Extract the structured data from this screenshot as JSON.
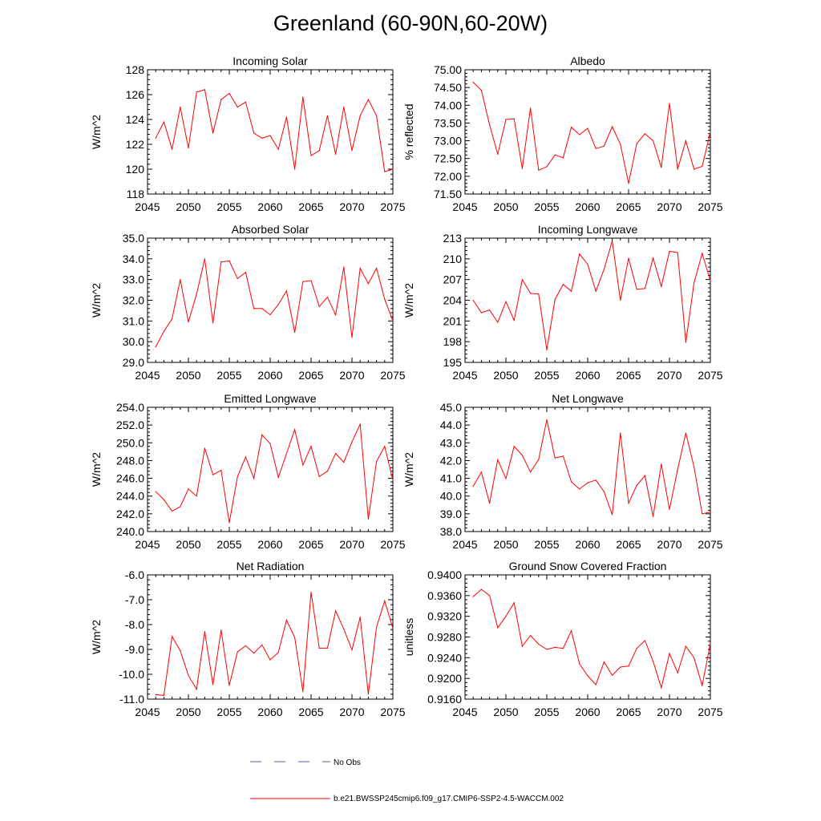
{
  "title": "Greenland (60-90N,60-20W)",
  "line_color": "#ff0000",
  "legend": {
    "obs_label": "No Obs",
    "obs_color": "#5060b0",
    "model_label": "b.e21.BWSSP245cmip6.f09_g17.CMIP6-SSP2-4.5-WACCM.002",
    "model_color": "#ff0000"
  },
  "chart_data": [
    {
      "type": "line",
      "title": "Incoming Solar",
      "ylabel": "W/m^2",
      "xlim": [
        2045,
        2075
      ],
      "ylim": [
        118,
        128
      ],
      "x_ticks": [
        2045,
        2050,
        2055,
        2060,
        2065,
        2070,
        2075
      ],
      "y_ticks": [
        "118",
        "120",
        "122",
        "124",
        "126",
        "128"
      ],
      "x": [
        2046,
        2047,
        2048,
        2049,
        2050,
        2051,
        2052,
        2053,
        2054,
        2055,
        2056,
        2057,
        2058,
        2059,
        2060,
        2061,
        2062,
        2063,
        2064,
        2065,
        2066,
        2067,
        2068,
        2069,
        2070,
        2071,
        2072,
        2073,
        2074,
        2075
      ],
      "values": [
        122.5,
        123.8,
        121.6,
        125.0,
        121.7,
        126.2,
        126.4,
        122.9,
        125.6,
        126.1,
        125.0,
        125.4,
        122.9,
        122.5,
        122.7,
        121.6,
        124.2,
        120.0,
        125.8,
        121.1,
        121.5,
        124.3,
        121.2,
        125.0,
        121.5,
        124.3,
        125.6,
        124.3,
        119.8,
        120.0
      ]
    },
    {
      "type": "line",
      "title": "Albedo",
      "ylabel": "% reflected",
      "xlim": [
        2045,
        2075
      ],
      "ylim": [
        71.5,
        75.0
      ],
      "x_ticks": [
        2045,
        2050,
        2055,
        2060,
        2065,
        2070,
        2075
      ],
      "y_ticks": [
        "71.50",
        "72.00",
        "72.50",
        "73.00",
        "73.50",
        "74.00",
        "74.50",
        "75.00"
      ],
      "x": [
        2046,
        2047,
        2048,
        2049,
        2050,
        2051,
        2052,
        2053,
        2054,
        2055,
        2056,
        2057,
        2058,
        2059,
        2060,
        2061,
        2062,
        2063,
        2064,
        2065,
        2066,
        2067,
        2068,
        2069,
        2070,
        2071,
        2072,
        2073,
        2074,
        2075
      ],
      "values": [
        74.65,
        74.42,
        73.45,
        72.62,
        73.6,
        73.62,
        72.22,
        73.92,
        72.17,
        72.27,
        72.6,
        72.52,
        73.38,
        73.17,
        73.35,
        72.78,
        72.85,
        73.4,
        72.9,
        71.8,
        72.92,
        73.2,
        73.0,
        72.25,
        74.05,
        72.2,
        73.0,
        72.2,
        72.28,
        73.25
      ]
    },
    {
      "type": "line",
      "title": "Absorbed Solar",
      "ylabel": "W/m^2",
      "xlim": [
        2045,
        2075
      ],
      "ylim": [
        29.0,
        35.0
      ],
      "x_ticks": [
        2045,
        2050,
        2055,
        2060,
        2065,
        2070,
        2075
      ],
      "y_ticks": [
        "29.0",
        "30.0",
        "31.0",
        "32.0",
        "33.0",
        "34.0",
        "35.0"
      ],
      "x": [
        2046,
        2047,
        2048,
        2049,
        2050,
        2051,
        2052,
        2053,
        2054,
        2055,
        2056,
        2057,
        2058,
        2059,
        2060,
        2061,
        2062,
        2063,
        2064,
        2065,
        2066,
        2067,
        2068,
        2069,
        2070,
        2071,
        2072,
        2073,
        2074,
        2075
      ],
      "values": [
        29.75,
        30.5,
        31.1,
        33.0,
        30.95,
        32.3,
        34.0,
        30.9,
        33.85,
        33.9,
        33.05,
        33.35,
        31.6,
        31.6,
        31.3,
        31.8,
        32.45,
        30.45,
        32.9,
        32.95,
        31.7,
        32.15,
        31.3,
        33.6,
        30.2,
        33.55,
        32.8,
        33.55,
        32.05,
        31.0
      ]
    },
    {
      "type": "line",
      "title": "Incoming Longwave",
      "ylabel": "W/m^2",
      "xlim": [
        2045,
        2075
      ],
      "ylim": [
        195,
        213
      ],
      "x_ticks": [
        2045,
        2050,
        2055,
        2060,
        2065,
        2070,
        2075
      ],
      "y_ticks": [
        "195",
        "198",
        "201",
        "204",
        "207",
        "210",
        "213"
      ],
      "x": [
        2046,
        2047,
        2048,
        2049,
        2050,
        2051,
        2052,
        2053,
        2054,
        2055,
        2056,
        2057,
        2058,
        2059,
        2060,
        2061,
        2062,
        2063,
        2064,
        2065,
        2066,
        2067,
        2068,
        2069,
        2070,
        2071,
        2072,
        2073,
        2074,
        2075
      ],
      "values": [
        204.0,
        202.2,
        202.6,
        200.8,
        203.8,
        201.1,
        207.0,
        205.0,
        204.9,
        196.8,
        204.1,
        206.3,
        205.3,
        210.7,
        209.2,
        205.3,
        208.5,
        212.6,
        204.0,
        210.1,
        205.6,
        205.7,
        210.1,
        206.0,
        211.1,
        210.9,
        197.9,
        206.5,
        210.8,
        206.8
      ]
    },
    {
      "type": "line",
      "title": "Emitted Longwave",
      "ylabel": "W/m^2",
      "xlim": [
        2045,
        2075
      ],
      "ylim": [
        240.0,
        254.0
      ],
      "x_ticks": [
        2045,
        2050,
        2055,
        2060,
        2065,
        2070,
        2075
      ],
      "y_ticks": [
        "240.0",
        "242.0",
        "244.0",
        "246.0",
        "248.0",
        "250.0",
        "252.0",
        "254.0"
      ],
      "x": [
        2046,
        2047,
        2048,
        2049,
        2050,
        2051,
        2052,
        2053,
        2054,
        2055,
        2056,
        2057,
        2058,
        2059,
        2060,
        2061,
        2062,
        2063,
        2064,
        2065,
        2066,
        2067,
        2068,
        2069,
        2070,
        2071,
        2072,
        2073,
        2074,
        2075
      ],
      "values": [
        244.5,
        243.6,
        242.3,
        242.8,
        244.8,
        244.0,
        249.4,
        246.4,
        246.9,
        241.0,
        246.2,
        248.4,
        246.0,
        250.9,
        249.9,
        246.1,
        248.8,
        251.5,
        247.5,
        249.6,
        246.2,
        246.8,
        248.8,
        247.8,
        250.1,
        252.1,
        241.4,
        247.9,
        249.6,
        245.8
      ]
    },
    {
      "type": "line",
      "title": "Net Longwave",
      "ylabel": "W/m^2",
      "xlim": [
        2045,
        2075
      ],
      "ylim": [
        38.0,
        45.0
      ],
      "x_ticks": [
        2045,
        2050,
        2055,
        2060,
        2065,
        2070,
        2075
      ],
      "y_ticks": [
        "38.0",
        "39.0",
        "40.0",
        "41.0",
        "42.0",
        "43.0",
        "44.0",
        "45.0"
      ],
      "x": [
        2046,
        2047,
        2048,
        2049,
        2050,
        2051,
        2052,
        2053,
        2054,
        2055,
        2056,
        2057,
        2058,
        2059,
        2060,
        2061,
        2062,
        2063,
        2064,
        2065,
        2066,
        2067,
        2068,
        2069,
        2070,
        2071,
        2072,
        2073,
        2074,
        2075
      ],
      "values": [
        40.55,
        41.35,
        39.6,
        42.05,
        40.98,
        42.8,
        42.3,
        41.35,
        42.05,
        44.3,
        42.15,
        42.25,
        40.8,
        40.4,
        40.75,
        40.9,
        40.25,
        38.95,
        43.55,
        39.6,
        40.6,
        41.15,
        38.85,
        41.8,
        39.25,
        41.5,
        43.55,
        41.65,
        39.0,
        39.1
      ]
    },
    {
      "type": "line",
      "title": "Net Radiation",
      "ylabel": "W/m^2",
      "xlim": [
        2045,
        2075
      ],
      "ylim": [
        -11.0,
        -6.0
      ],
      "x_ticks": [
        2045,
        2050,
        2055,
        2060,
        2065,
        2070,
        2075
      ],
      "y_ticks": [
        "-11.0",
        "-10.0",
        "-9.0",
        "-8.0",
        "-7.0",
        "-6.0"
      ],
      "x": [
        2046,
        2047,
        2048,
        2049,
        2050,
        2051,
        2052,
        2053,
        2054,
        2055,
        2056,
        2057,
        2058,
        2059,
        2060,
        2061,
        2062,
        2063,
        2064,
        2065,
        2066,
        2067,
        2068,
        2069,
        2070,
        2071,
        2072,
        2073,
        2074,
        2075
      ],
      "values": [
        -10.82,
        -10.85,
        -8.48,
        -9.05,
        -10.05,
        -10.6,
        -8.28,
        -10.42,
        -8.22,
        -10.45,
        -9.1,
        -8.85,
        -9.15,
        -8.82,
        -9.42,
        -9.12,
        -7.82,
        -8.52,
        -10.7,
        -6.7,
        -8.95,
        -8.95,
        -7.45,
        -8.18,
        -9.02,
        -7.7,
        -10.8,
        -8.1,
        -7.05,
        -8.15
      ]
    },
    {
      "type": "line",
      "title": "Ground Snow Covered Fraction",
      "ylabel": "unitless",
      "xlim": [
        2045,
        2075
      ],
      "ylim": [
        0.916,
        0.94
      ],
      "x_ticks": [
        2045,
        2050,
        2055,
        2060,
        2065,
        2070,
        2075
      ],
      "y_ticks": [
        "0.9160",
        "0.9200",
        "0.9240",
        "0.9280",
        "0.9320",
        "0.9360",
        "0.9400"
      ],
      "x": [
        2046,
        2047,
        2048,
        2049,
        2050,
        2051,
        2052,
        2053,
        2054,
        2055,
        2056,
        2057,
        2058,
        2059,
        2060,
        2061,
        2062,
        2063,
        2064,
        2065,
        2066,
        2067,
        2068,
        2069,
        2070,
        2071,
        2072,
        2073,
        2074,
        2075
      ],
      "values": [
        0.9358,
        0.9372,
        0.936,
        0.9298,
        0.932,
        0.9346,
        0.9262,
        0.9283,
        0.9266,
        0.9256,
        0.926,
        0.9258,
        0.9292,
        0.9228,
        0.9205,
        0.9188,
        0.9232,
        0.9206,
        0.9222,
        0.9224,
        0.9258,
        0.9273,
        0.9233,
        0.9182,
        0.9248,
        0.9211,
        0.9262,
        0.924,
        0.9186,
        0.9268
      ]
    }
  ]
}
